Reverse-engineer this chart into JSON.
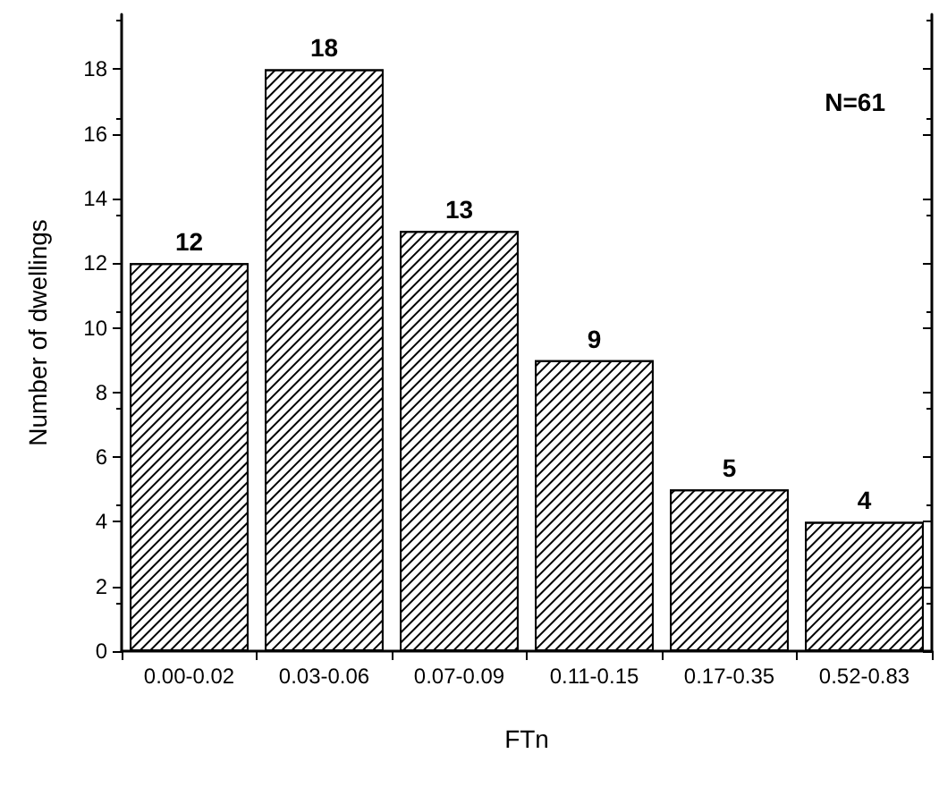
{
  "chart_data": {
    "type": "bar",
    "xlabel": "FTn",
    "ylabel": "Number of dwellings",
    "categories": [
      "0.00-0.02",
      "0.03-0.06",
      "0.07-0.09",
      "0.11-0.15",
      "0.17-0.35",
      "0.52-0.83"
    ],
    "values": [
      12,
      18,
      13,
      9,
      5,
      4
    ],
    "color": "#000000",
    "ylim": [
      0,
      19.7
    ],
    "yticks": [
      0,
      2,
      4,
      6,
      8,
      10,
      12,
      14,
      16,
      18
    ],
    "grid": false,
    "data_labels": true,
    "annotations": [
      "N=61"
    ]
  }
}
